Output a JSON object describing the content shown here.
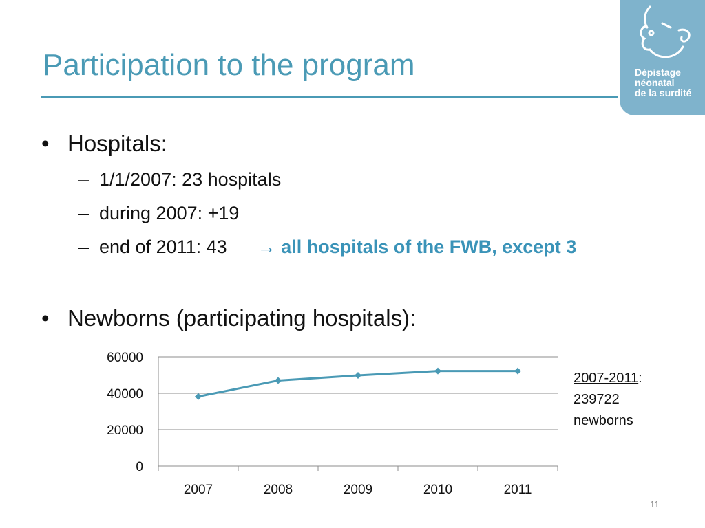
{
  "slide": {
    "title": "Participation to the program",
    "page_number": "11"
  },
  "logo": {
    "lines": [
      "Dépistage",
      "néonatal",
      "de la surdité"
    ]
  },
  "hospitals": {
    "heading": "Hospitals:",
    "items": [
      "1/1/2007: 23 hospitals",
      "during 2007: +19",
      "end of 2011: 43"
    ],
    "arrow": "→",
    "note": "all hospitals of the FWB, except 3"
  },
  "newborns": {
    "heading": "Newborns (participating hospitals):"
  },
  "summary": {
    "period": "2007-2011",
    "colon": ":",
    "count": "239722",
    "unit": "newborns"
  },
  "chart_data": {
    "type": "line",
    "categories": [
      "2007",
      "2008",
      "2009",
      "2010",
      "2011"
    ],
    "series": [
      {
        "values": [
          38200,
          47000,
          49800,
          52200,
          52200
        ]
      }
    ],
    "ylim": [
      0,
      60000
    ],
    "yticks": [
      0,
      20000,
      40000,
      60000
    ],
    "grid": true,
    "legend": "none",
    "line_color": "#4a9ab5"
  }
}
